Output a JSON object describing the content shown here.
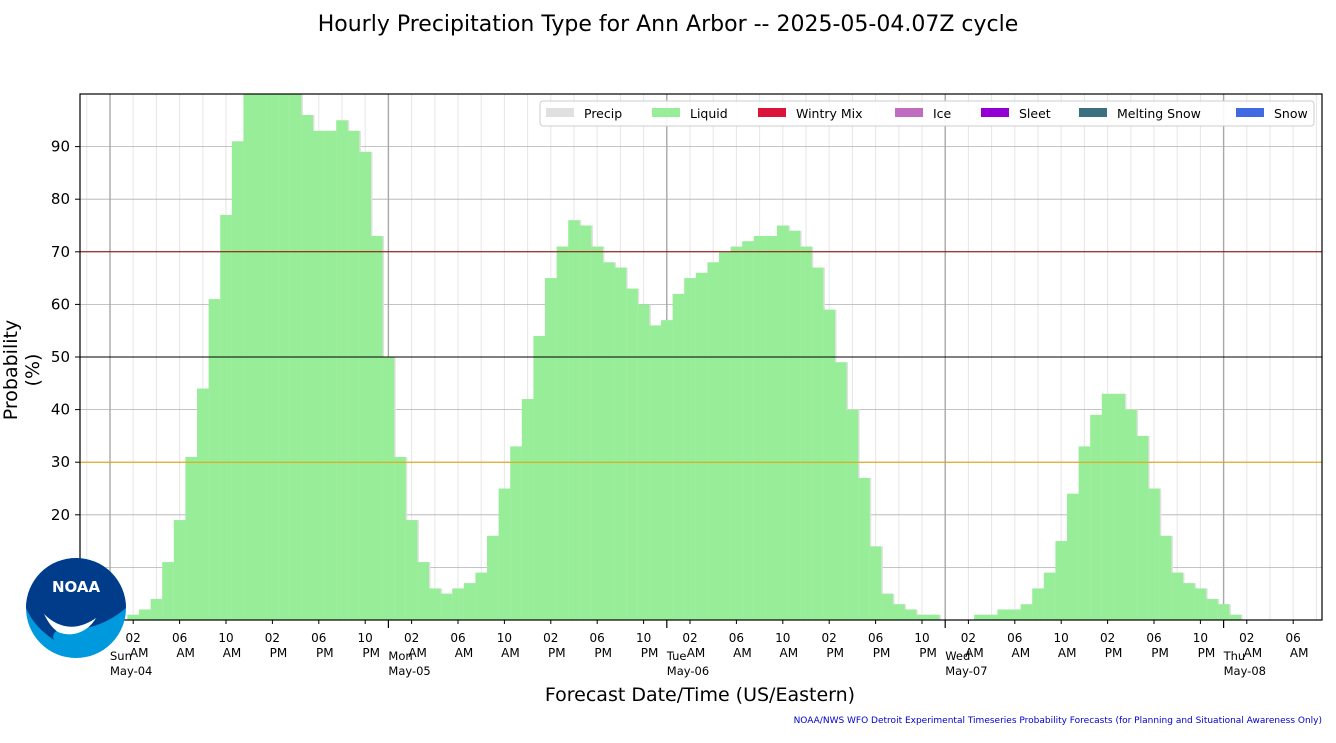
{
  "title": "Hourly Precipitation Type for Ann Arbor -- 2025-05-04.07Z cycle",
  "footer": "NOAA/NWS WFO Detroit Experimental Timeseries Probability Forecasts (for Planning and Situational Awareness Only)",
  "logo_text": "NOAA",
  "chart_data": {
    "type": "bar",
    "xlabel": "Forecast Date/Time (US/Eastern)",
    "ylabel": "Probability (%)",
    "ylim": [
      0,
      100
    ],
    "yticks": [
      20,
      30,
      40,
      50,
      60,
      70,
      80,
      90
    ],
    "grid": true,
    "legend_position": "top-right",
    "legend": [
      {
        "name": "Precip",
        "color": "#e0e0e0"
      },
      {
        "name": "Liquid",
        "color": "#98ee98"
      },
      {
        "name": "Wintry Mix",
        "color": "#dc143c"
      },
      {
        "name": "Ice",
        "color": "#c06cc0"
      },
      {
        "name": "Sleet",
        "color": "#9400d3"
      },
      {
        "name": "Melting Snow",
        "color": "#3a7080"
      },
      {
        "name": "Snow",
        "color": "#4169e1"
      }
    ],
    "threshold_lines": [
      {
        "value": 70,
        "color": "#8b0000"
      },
      {
        "value": 50,
        "color": "#000000"
      },
      {
        "value": 30,
        "color": "#e8a000"
      }
    ],
    "x_start_hour": 2,
    "day_labels": [
      {
        "day": "Sun",
        "date": "May-04",
        "hour": 0
      },
      {
        "day": "Mon",
        "date": "May-05",
        "hour": 24
      },
      {
        "day": "Tue",
        "date": "May-06",
        "hour": 48
      },
      {
        "day": "Wed",
        "date": "May-07",
        "hour": 72
      },
      {
        "day": "Thu",
        "date": "May-08",
        "hour": 96
      }
    ],
    "tick_labels": [
      {
        "hour": 2,
        "h": "02",
        "ampm": "AM"
      },
      {
        "hour": 6,
        "h": "06",
        "ampm": "AM"
      },
      {
        "hour": 10,
        "h": "10",
        "ampm": "AM"
      },
      {
        "hour": 14,
        "h": "02",
        "ampm": "PM"
      },
      {
        "hour": 18,
        "h": "06",
        "ampm": "PM"
      },
      {
        "hour": 22,
        "h": "10",
        "ampm": "PM"
      },
      {
        "hour": 26,
        "h": "02",
        "ampm": "AM"
      },
      {
        "hour": 30,
        "h": "06",
        "ampm": "AM"
      },
      {
        "hour": 34,
        "h": "10",
        "ampm": "AM"
      },
      {
        "hour": 38,
        "h": "02",
        "ampm": "PM"
      },
      {
        "hour": 42,
        "h": "06",
        "ampm": "PM"
      },
      {
        "hour": 46,
        "h": "10",
        "ampm": "PM"
      },
      {
        "hour": 50,
        "h": "02",
        "ampm": "AM"
      },
      {
        "hour": 54,
        "h": "06",
        "ampm": "AM"
      },
      {
        "hour": 58,
        "h": "10",
        "ampm": "AM"
      },
      {
        "hour": 62,
        "h": "02",
        "ampm": "PM"
      },
      {
        "hour": 66,
        "h": "06",
        "ampm": "PM"
      },
      {
        "hour": 70,
        "h": "10",
        "ampm": "PM"
      },
      {
        "hour": 74,
        "h": "02",
        "ampm": "AM"
      },
      {
        "hour": 78,
        "h": "06",
        "ampm": "AM"
      },
      {
        "hour": 82,
        "h": "10",
        "ampm": "AM"
      },
      {
        "hour": 86,
        "h": "02",
        "ampm": "PM"
      },
      {
        "hour": 90,
        "h": "06",
        "ampm": "PM"
      },
      {
        "hour": 94,
        "h": "10",
        "ampm": "PM"
      },
      {
        "hour": 98,
        "h": "02",
        "ampm": "AM"
      },
      {
        "hour": 102,
        "h": "06",
        "ampm": "AM"
      }
    ],
    "series": [
      {
        "name": "Liquid",
        "color": "#98ee98",
        "values": [
          1,
          2,
          4,
          11,
          19,
          31,
          44,
          61,
          77,
          91,
          100,
          100,
          100,
          100,
          100,
          96,
          93,
          93,
          95,
          93,
          89,
          73,
          50,
          31,
          19,
          11,
          6,
          5,
          6,
          7,
          9,
          16,
          25,
          33,
          42,
          54,
          65,
          71,
          76,
          75,
          71,
          68,
          67,
          63,
          60,
          56,
          57,
          62,
          65,
          66,
          68,
          70,
          71,
          72,
          73,
          73,
          75,
          74,
          71,
          67,
          59,
          49,
          40,
          27,
          14,
          5,
          3,
          2,
          1,
          1,
          0,
          0,
          0,
          1,
          1,
          2,
          2,
          3,
          6,
          9,
          15,
          24,
          33,
          39,
          43,
          43,
          40,
          35,
          25,
          16,
          9,
          7,
          6,
          4,
          3,
          1,
          0
        ]
      }
    ]
  }
}
